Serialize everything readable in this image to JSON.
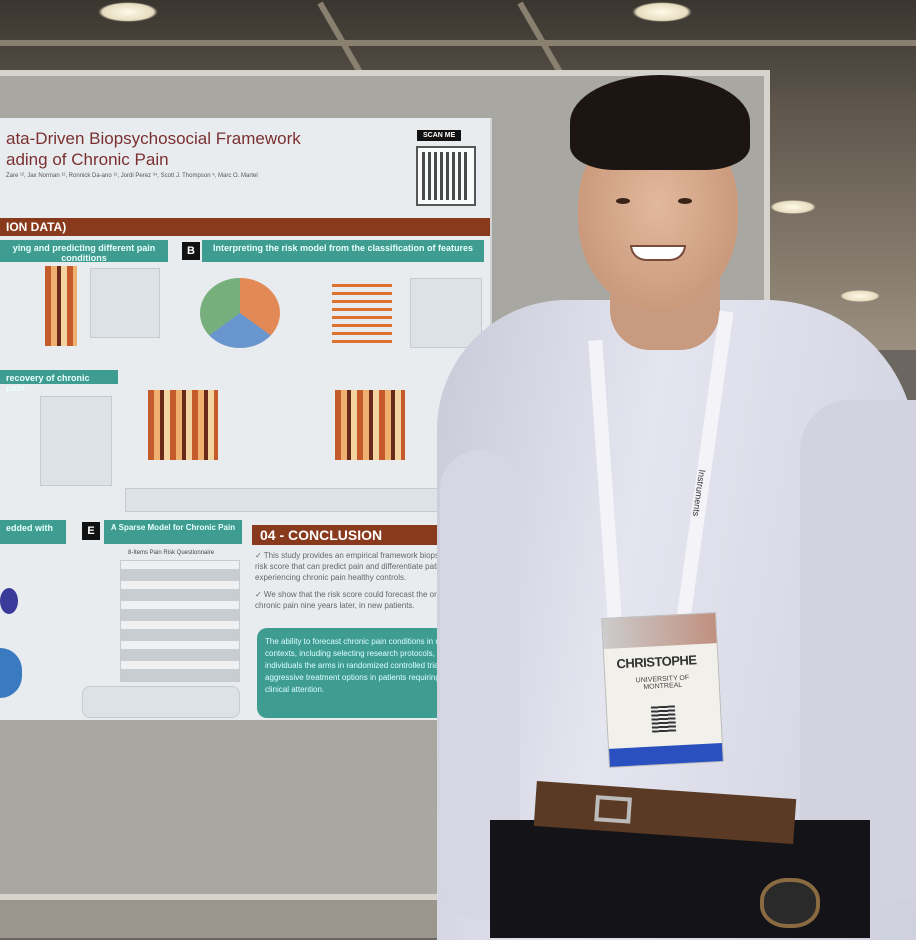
{
  "poster": {
    "title_line1": "ata-Driven Biopsychosocial Framework",
    "title_line2": "ading of Chronic Pain",
    "authors": "Zare ¹², Jax Norman ¹², Ronnick Da-ano ¹², Jordi Perez ³⁴, Scott J. Thompson ⁵, Marc O. Martel",
    "scan_label": "SCAN ME",
    "section_band": "ION DATA)",
    "panel_a": "ying and predicting different pain conditions",
    "panel_b_letter": "B",
    "panel_b": "Interpreting the risk model from the classification of features",
    "recovery": "recovery of chronic pain.",
    "panel_d": "edded with",
    "panel_e_letter": "E",
    "panel_e": "A Sparse Model for Chronic Pain",
    "questionnaire": "8-Items Pain Risk Questionnaire",
    "conclusion_title": "04 - CONCLUSION",
    "conclusion_1": "✓ This study provides an empirical framework biopsychosocial risk score that can predict pain and differentiate patients experiencing chronic pain healthy controls.",
    "conclusion_2": "✓ We show that the risk score could forecast the or recovery of chronic pain nine years later, in new patients.",
    "conclusion_box": "The ability to forecast chronic pain conditions in many contexts, including selecting research protocols, matching individuals the arms in randomized controlled trials more aggressive treatment options in patients requiring urgent clinical attention."
  },
  "badge": {
    "name": "CHRISTOPHE",
    "affiliation": "UNIVERSITY OF MONTREAL"
  },
  "lanyard": {
    "text": "Instruments"
  },
  "colors": {
    "poster_accent": "#8a3a1c",
    "poster_teal": "#3f9c91",
    "badge_stripe": "#2a50c0",
    "carpet": "#d85a30"
  }
}
